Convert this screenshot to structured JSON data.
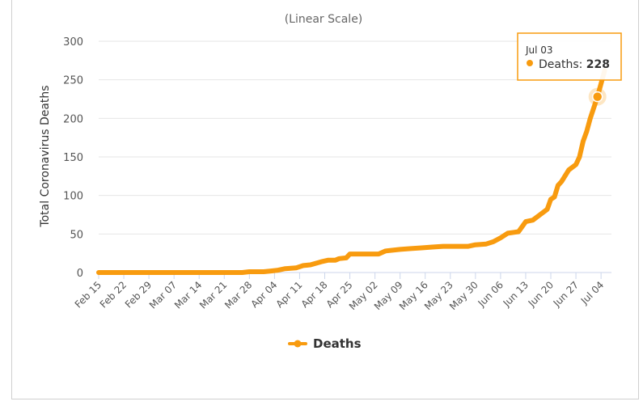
{
  "chart_data": {
    "type": "line",
    "subtitle": "(Linear Scale)",
    "ylabel": "Total Coronavirus Deaths",
    "xlabel": "",
    "ylim": [
      0,
      300
    ],
    "yticks": [
      0,
      50,
      100,
      150,
      200,
      250,
      300
    ],
    "grid": true,
    "legend_placement": "bottom-center",
    "colors": {
      "series": "#f89b0f",
      "grid": "#e6e6e6",
      "axis": "#ccd6eb"
    },
    "x_start": "Feb 15",
    "x_end": "Jul 06",
    "xtick_labels": [
      "Feb 15",
      "Feb 22",
      "Feb 29",
      "Mar 07",
      "Mar 14",
      "Mar 21",
      "Mar 28",
      "Apr 04",
      "Apr 11",
      "Apr 18",
      "Apr 25",
      "May 02",
      "May 09",
      "May 16",
      "May 23",
      "May 30",
      "Jun 06",
      "Jun 13",
      "Jun 20",
      "Jun 27",
      "Jul 04"
    ],
    "series": [
      {
        "name": "Deaths",
        "points": [
          [
            "Feb 15",
            0
          ],
          [
            "Feb 22",
            0
          ],
          [
            "Feb 29",
            0
          ],
          [
            "Mar 07",
            0
          ],
          [
            "Mar 14",
            0
          ],
          [
            "Mar 21",
            0
          ],
          [
            "Mar 26",
            0
          ],
          [
            "Mar 28",
            1
          ],
          [
            "Apr 01",
            1
          ],
          [
            "Apr 03",
            2
          ],
          [
            "Apr 05",
            3
          ],
          [
            "Apr 07",
            5
          ],
          [
            "Apr 10",
            6
          ],
          [
            "Apr 12",
            9
          ],
          [
            "Apr 14",
            10
          ],
          [
            "Apr 17",
            14
          ],
          [
            "Apr 19",
            16
          ],
          [
            "Apr 21",
            16
          ],
          [
            "Apr 22",
            18
          ],
          [
            "Apr 24",
            19
          ],
          [
            "Apr 25",
            24
          ],
          [
            "Apr 27",
            24
          ],
          [
            "May 03",
            24
          ],
          [
            "May 05",
            28
          ],
          [
            "May 09",
            30
          ],
          [
            "May 12",
            31
          ],
          [
            "May 15",
            32
          ],
          [
            "May 18",
            33
          ],
          [
            "May 21",
            34
          ],
          [
            "May 28",
            34
          ],
          [
            "May 30",
            36
          ],
          [
            "Jun 02",
            37
          ],
          [
            "Jun 04",
            40
          ],
          [
            "Jun 06",
            45
          ],
          [
            "Jun 08",
            51
          ],
          [
            "Jun 11",
            53
          ],
          [
            "Jun 13",
            66
          ],
          [
            "Jun 15",
            68
          ],
          [
            "Jun 17",
            75
          ],
          [
            "Jun 19",
            82
          ],
          [
            "Jun 20",
            95
          ],
          [
            "Jun 21",
            98
          ],
          [
            "Jun 22",
            113
          ],
          [
            "Jun 23",
            118
          ],
          [
            "Jun 25",
            133
          ],
          [
            "Jun 27",
            140
          ],
          [
            "Jun 28",
            150
          ],
          [
            "Jun 29",
            170
          ],
          [
            "Jun 30",
            183
          ],
          [
            "Jul 01",
            200
          ],
          [
            "Jul 03",
            228
          ],
          [
            "Jul 05",
            262
          ]
        ]
      }
    ],
    "tooltip": {
      "date": "Jul 03",
      "label": "Deaths: ",
      "value": "228"
    }
  }
}
